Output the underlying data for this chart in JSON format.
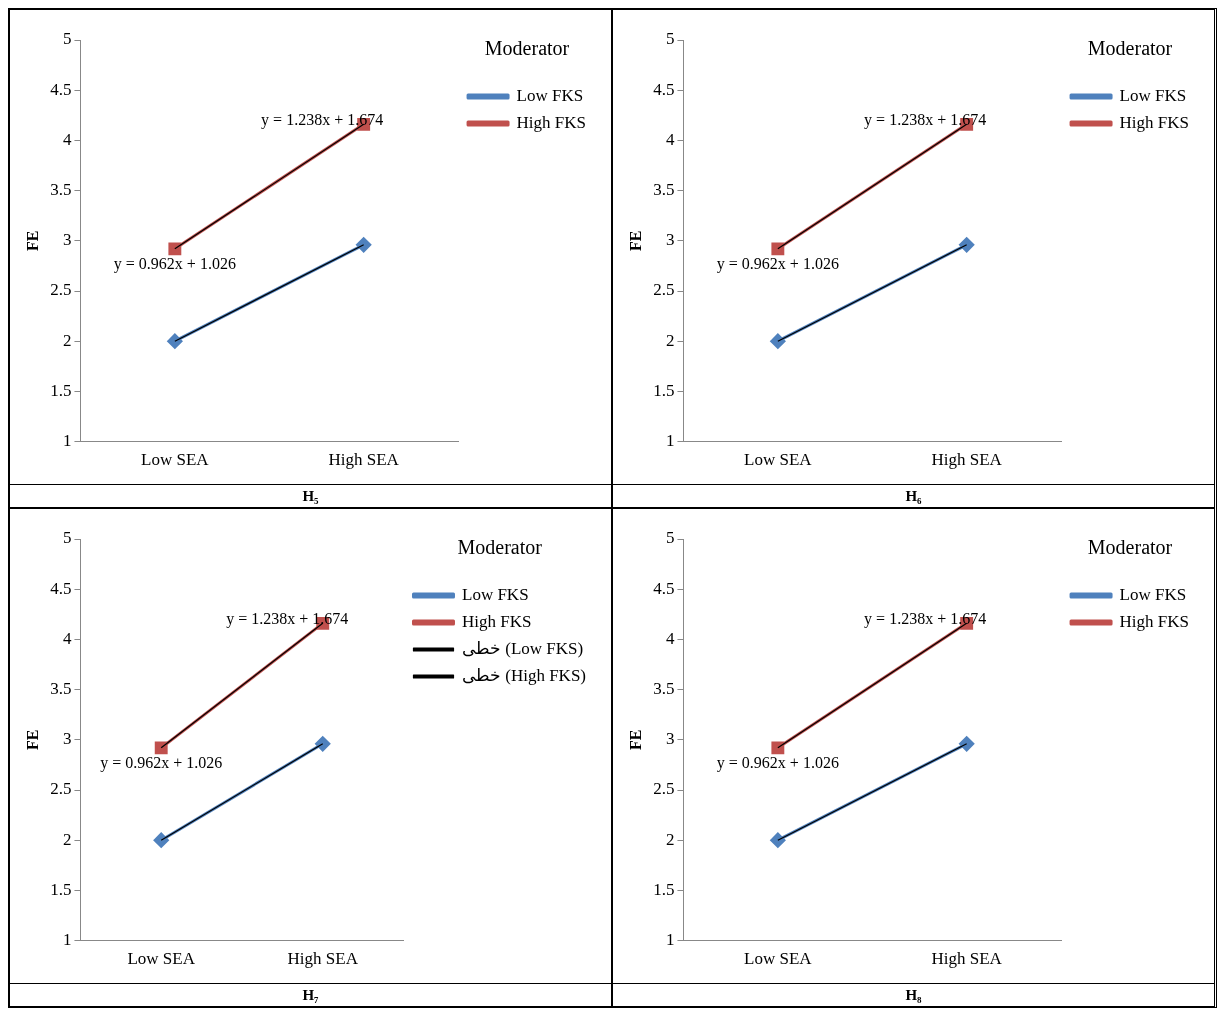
{
  "chart_data": [
    {
      "type": "line",
      "title": "H₅",
      "ylabel": "FE",
      "legend_title": "Moderator",
      "legend": "top right",
      "grid": false,
      "categories": [
        "Low SEA",
        "High SEA"
      ],
      "ylim": [
        1,
        5
      ],
      "yticks": [
        1,
        1.5,
        2,
        2.5,
        3,
        3.5,
        4,
        4.5,
        5
      ],
      "series": [
        {
          "name": "Low FKS",
          "color": "#4f81bd",
          "marker": "diamond",
          "values": [
            2,
            2.96
          ]
        },
        {
          "name": "High FKS",
          "color": "#c0504d",
          "marker": "square",
          "values": [
            2.92,
            4.16
          ]
        },
        {
          "type": "line",
          "color": "#000000",
          "marker": "none",
          "x": [
            "Low SEA",
            "High SEA"
          ],
          "values": [
            2,
            2.96
          ]
        },
        {
          "type": "line",
          "color": "#000000",
          "marker": "none",
          "x": [
            "Low SEA",
            "High SEA"
          ],
          "values": [
            2.92,
            4.16
          ]
        }
      ],
      "annotations": [
        "y = 0.962x + 1.026",
        "y = 1.238x + 1.674"
      ]
    },
    {
      "type": "line",
      "title": "H₆",
      "ylabel": "FE",
      "legend_title": "Moderator",
      "legend": "top right",
      "grid": false,
      "categories": [
        "Low SEA",
        "High SEA"
      ],
      "ylim": [
        1,
        5
      ],
      "yticks": [
        1,
        1.5,
        2,
        2.5,
        3,
        3.5,
        4,
        4.5,
        5
      ],
      "series": [
        {
          "name": "Low FKS",
          "color": "#4f81bd",
          "marker": "diamond",
          "values": [
            2,
            2.96
          ]
        },
        {
          "name": "High FKS",
          "color": "#c0504d",
          "marker": "square",
          "values": [
            2.92,
            4.16
          ]
        },
        {
          "type": "line",
          "color": "#000000",
          "marker": "none",
          "x": [
            "Low SEA",
            "High SEA"
          ],
          "values": [
            2,
            2.96
          ]
        },
        {
          "type": "line",
          "color": "#000000",
          "marker": "none",
          "x": [
            "Low SEA",
            "High SEA"
          ],
          "values": [
            2.92,
            4.16
          ]
        }
      ],
      "annotations": [
        "y = 0.962x + 1.026",
        "y = 1.238x + 1.674"
      ]
    },
    {
      "type": "line",
      "title": "H₇",
      "ylabel": "FE",
      "legend_title": "Moderator",
      "legend": "top right",
      "grid": false,
      "categories": [
        "Low SEA",
        "High SEA"
      ],
      "ylim": [
        1,
        5
      ],
      "yticks": [
        1,
        1.5,
        2,
        2.5,
        3,
        3.5,
        4,
        4.5,
        5
      ],
      "series": [
        {
          "name": "Low FKS",
          "color": "#4f81bd",
          "marker": "diamond",
          "values": [
            2,
            2.96
          ]
        },
        {
          "name": "High FKS",
          "color": "#c0504d",
          "marker": "square",
          "values": [
            2.92,
            4.16
          ]
        },
        {
          "type": "line",
          "name": "خطی (Low FKS)",
          "color": "#000000",
          "marker": "none",
          "x": [
            "Low SEA",
            "High SEA"
          ],
          "values": [
            2,
            2.96
          ]
        },
        {
          "type": "line",
          "name": "خطی (High FKS)",
          "color": "#000000",
          "marker": "none",
          "x": [
            "Low SEA",
            "High SEA"
          ],
          "values": [
            2.92,
            4.16
          ]
        }
      ],
      "annotations": [
        "y = 0.962x + 1.026",
        "y = 1.238x + 1.674"
      ]
    },
    {
      "type": "line",
      "title": "H₈",
      "ylabel": "FE",
      "legend_title": "Moderator",
      "legend": "top right",
      "grid": false,
      "categories": [
        "Low SEA",
        "High SEA"
      ],
      "ylim": [
        1,
        5
      ],
      "yticks": [
        1,
        1.5,
        2,
        2.5,
        3,
        3.5,
        4,
        4.5,
        5
      ],
      "series": [
        {
          "name": "Low FKS",
          "color": "#4f81bd",
          "marker": "diamond",
          "values": [
            2,
            2.96
          ]
        },
        {
          "name": "High FKS",
          "color": "#c0504d",
          "marker": "square",
          "values": [
            2.92,
            4.16
          ]
        },
        {
          "type": "line",
          "color": "#000000",
          "marker": "none",
          "x": [
            "Low SEA",
            "High SEA"
          ],
          "values": [
            2,
            2.96
          ]
        },
        {
          "type": "line",
          "color": "#000000",
          "marker": "none",
          "x": [
            "Low SEA",
            "High SEA"
          ],
          "values": [
            2.92,
            4.16
          ]
        }
      ],
      "annotations": [
        "y = 0.962x + 1.026",
        "y = 1.238x + 1.674"
      ]
    }
  ]
}
